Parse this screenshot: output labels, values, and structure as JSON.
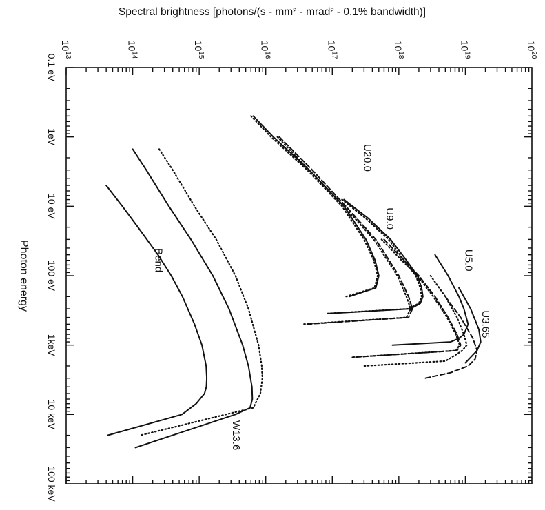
{
  "chart_data": {
    "type": "line",
    "title": "",
    "ylabel": "Spectral brightness [photons/(s - mm² - mrad² - 0.1% bandwidth)]",
    "xlabel": "Photon energy",
    "x_scale": "log",
    "y_scale": "log",
    "xlim": [
      0.1,
      100000
    ],
    "ylim": [
      10000000000000.0,
      1e+20
    ],
    "grid": false,
    "legend": "none",
    "x_tick_labels": [
      "0.1 eV",
      "1eV",
      "10 eV",
      "100 eV",
      "1keV",
      "10 keV",
      "100 keV"
    ],
    "x_tick_values": [
      0.1,
      1,
      10,
      100,
      1000,
      10000,
      100000
    ],
    "y_tick_labels": [
      {
        "base": "10",
        "exp": "13"
      },
      {
        "base": "10",
        "exp": "14"
      },
      {
        "base": "10",
        "exp": "15"
      },
      {
        "base": "10",
        "exp": "16"
      },
      {
        "base": "10",
        "exp": "17"
      },
      {
        "base": "10",
        "exp": "18"
      },
      {
        "base": "10",
        "exp": "19"
      },
      {
        "base": "10",
        "exp": "20"
      }
    ],
    "y_tick_values": [
      10000000000000.0,
      100000000000000.0,
      1000000000000000.0,
      1e+16,
      1e+17,
      1e+18,
      1e+19,
      1e+20
    ],
    "annotations": [
      {
        "text": "Bend",
        "x": 60,
        "y": 220000000000000.0
      },
      {
        "text": "W13.6",
        "x": 20000,
        "y": 3200000000000000.0
      },
      {
        "text": "U20.0",
        "x": 2,
        "y": 3e+17
      },
      {
        "text": "U9.0",
        "x": 15,
        "y": 6.5e+17
      },
      {
        "text": "U5.0",
        "x": 60,
        "y": 1e+19
      },
      {
        "text": "U3.65",
        "x": 500,
        "y": 1.8e+19
      }
    ],
    "series": [
      {
        "style": "solid",
        "x": [
          5,
          10,
          20,
          50,
          100,
          200,
          500,
          1000,
          2000,
          3000,
          4000,
          5000,
          7000,
          10000,
          20000
        ],
        "y": [
          40000000000000.0,
          70000000000000.0,
          120000000000000.0,
          240000000000000.0,
          380000000000000.0,
          560000000000000.0,
          850000000000000.0,
          1100000000000000.0,
          1270000000000000.0,
          1300000000000000.0,
          1280000000000000.0,
          1200000000000000.0,
          900000000000000.0,
          550000000000000.0,
          42000000000000.0
        ]
      },
      {
        "style": "solid",
        "x": [
          1.5,
          3,
          10,
          30,
          100,
          300,
          1000,
          2000,
          4000,
          6000,
          8000,
          10000,
          30000
        ],
        "y": [
          100000000000000.0,
          160000000000000.0,
          350000000000000.0,
          750000000000000.0,
          1600000000000000.0,
          2800000000000000.0,
          4500000000000000.0,
          5500000000000000.0,
          6200000000000000.0,
          6300000000000000.0,
          5800000000000000.0,
          3500000000000000.0,
          110000000000000.0
        ]
      },
      {
        "style": "dotted",
        "x": [
          1.5,
          3,
          10,
          30,
          100,
          300,
          1000,
          2000,
          3000,
          5000,
          8000,
          20000
        ],
        "y": [
          250000000000000.0,
          400000000000000.0,
          850000000000000.0,
          1800000000000000.0,
          3500000000000000.0,
          5500000000000000.0,
          7800000000000000.0,
          8700000000000000.0,
          8900000000000000.0,
          8300000000000000.0,
          6500000000000000.0,
          130000000000000.0
        ]
      },
      {
        "style": "solid",
        "x": [
          0.5,
          1,
          3,
          10,
          30,
          60,
          100,
          150,
          200
        ],
        "y": [
          6500000000000000.0,
          1.3e+16,
          4.5e+16,
          1.5e+17,
          3.2e+17,
          4.4e+17,
          5e+17,
          4.5e+17,
          1.8e+17
        ]
      },
      {
        "style": "dotted",
        "x": [
          0.5,
          1,
          3,
          10,
          30,
          60,
          100,
          150,
          200
        ],
        "y": [
          6000000000000000.0,
          1.2e+16,
          4.2e+16,
          1.4e+17,
          3e+17,
          4.2e+17,
          4.8e+17,
          4.3e+17,
          1.6e+17
        ]
      },
      {
        "style": "dashed",
        "x": [
          1,
          3,
          10,
          30,
          100,
          200,
          300,
          400,
          500
        ],
        "y": [
          1.6e+16,
          5e+16,
          1.6e+17,
          4.5e+17,
          1e+18,
          1.4e+18,
          1.6e+18,
          1.4e+18,
          4e+16
        ]
      },
      {
        "style": "dotted",
        "x": [
          1,
          3,
          10,
          30,
          100,
          200,
          300,
          400,
          500
        ],
        "y": [
          1.5e+16,
          4.5e+16,
          1.5e+17,
          4.2e+17,
          9.5e+17,
          1.3e+18,
          1.5e+18,
          1.3e+18,
          3.5e+16
        ]
      },
      {
        "style": "solid",
        "x": [
          8,
          15,
          30,
          60,
          100,
          150,
          200,
          250,
          300,
          350
        ],
        "y": [
          1.5e+17,
          3.5e+17,
          7.5e+17,
          1.3e+18,
          1.9e+18,
          2.2e+18,
          2.3e+18,
          2.1e+18,
          1.5e+18,
          9e+16
        ]
      },
      {
        "style": "dotted",
        "x": [
          8,
          15,
          30,
          60,
          100,
          150,
          200,
          250,
          300,
          350
        ],
        "y": [
          1.4e+17,
          3.2e+17,
          7e+17,
          1.2e+18,
          1.8e+18,
          2.1e+18,
          2.2e+18,
          2e+18,
          1.4e+18,
          8.5e+16
        ]
      },
      {
        "style": "dashed",
        "x": [
          30,
          60,
          100,
          200,
          400,
          700,
          1000,
          1200,
          1500
        ],
        "y": [
          6e+17,
          1.2e+18,
          2e+18,
          3.5e+18,
          5.5e+18,
          7.5e+18,
          8.5e+18,
          7.5e+18,
          2e+17
        ]
      },
      {
        "style": "dotted",
        "x": [
          30,
          60,
          100,
          200,
          400,
          700,
          1000,
          1200,
          1500
        ],
        "y": [
          5.5e+17,
          1.1e+18,
          1.9e+18,
          3.3e+18,
          5.3e+18,
          7.2e+18,
          8.2e+18,
          7.2e+18,
          1.9e+17
        ]
      },
      {
        "style": "solid",
        "x": [
          50,
          100,
          200,
          300,
          500,
          700,
          800,
          900,
          1000
        ],
        "y": [
          3.5e+18,
          5.5e+18,
          8e+18,
          9.5e+18,
          1.1e+19,
          9.5e+18,
          8e+18,
          6e+18,
          8e+17
        ]
      },
      {
        "style": "dotted",
        "x": [
          100,
          200,
          400,
          700,
          1000,
          1200,
          1400,
          1700,
          2000
        ],
        "y": [
          3e+18,
          5e+18,
          7.5e+18,
          9.5e+18,
          1.05e+19,
          9e+18,
          7e+18,
          5e+18,
          3e+17
        ]
      },
      {
        "style": "solid",
        "x": [
          150,
          300,
          600,
          900,
          1200,
          1500,
          1800
        ],
        "y": [
          8e+18,
          1.2e+19,
          1.6e+19,
          1.7e+19,
          1.5e+19,
          1.2e+19,
          1e+19
        ]
      },
      {
        "style": "dashed",
        "x": [
          200,
          400,
          800,
          1200,
          1600,
          2000,
          2500,
          3000
        ],
        "y": [
          5e+18,
          8.5e+18,
          1.3e+19,
          1.5e+19,
          1.4e+19,
          1.1e+19,
          6e+18,
          2.5e+18
        ]
      }
    ]
  }
}
